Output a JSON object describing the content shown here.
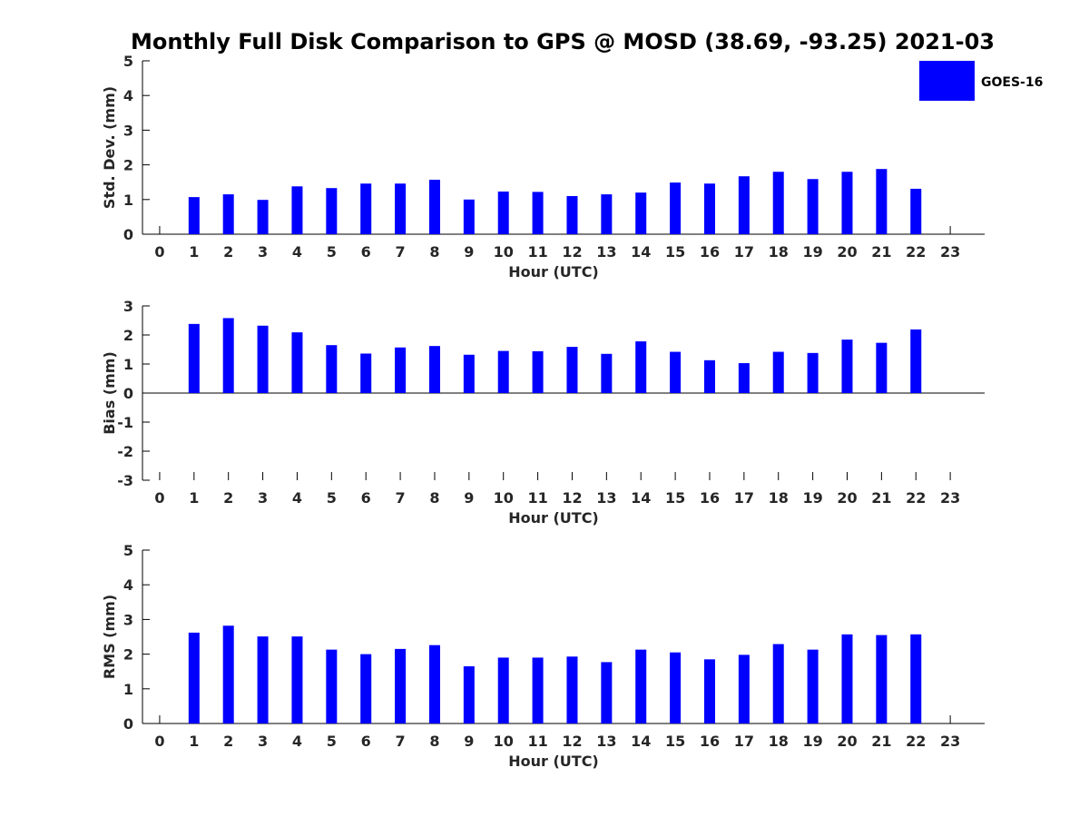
{
  "title": "Monthly Full Disk Comparison to GPS @ MOSD (38.69, -93.25) 2021-03",
  "legend": {
    "label": "GOES-16",
    "color": "#0000ff"
  },
  "chart_data": [
    {
      "type": "bar",
      "name": "std-dev",
      "title": "Monthly Full Disk Comparison to GPS @ MOSD (38.69, -93.25) 2021-03",
      "xlabel": "Hour (UTC)",
      "ylabel": "Std. Dev. (mm)",
      "ylim": [
        0,
        5
      ],
      "yticks": [
        "0",
        "1",
        "2",
        "3",
        "4",
        "5"
      ],
      "categories": [
        "0",
        "1",
        "2",
        "3",
        "4",
        "5",
        "6",
        "7",
        "8",
        "9",
        "10",
        "11",
        "12",
        "13",
        "14",
        "15",
        "16",
        "17",
        "18",
        "19",
        "20",
        "21",
        "22",
        "23"
      ],
      "series": [
        {
          "name": "GOES-16",
          "values": [
            null,
            1.07,
            1.15,
            0.99,
            1.38,
            1.33,
            1.46,
            1.46,
            1.57,
            1.0,
            1.23,
            1.22,
            1.1,
            1.15,
            1.2,
            1.49,
            1.46,
            1.67,
            1.8,
            1.59,
            1.8,
            1.88,
            1.31,
            null
          ]
        }
      ]
    },
    {
      "type": "bar",
      "name": "bias",
      "xlabel": "Hour (UTC)",
      "ylabel": "Bias (mm)",
      "ylim": [
        -3,
        3
      ],
      "yticks": [
        "-3",
        "-2",
        "-1",
        "0",
        "1",
        "2",
        "3"
      ],
      "categories": [
        "0",
        "1",
        "2",
        "3",
        "4",
        "5",
        "6",
        "7",
        "8",
        "9",
        "10",
        "11",
        "12",
        "13",
        "14",
        "15",
        "16",
        "17",
        "18",
        "19",
        "20",
        "21",
        "22",
        "23"
      ],
      "series": [
        {
          "name": "GOES-16",
          "values": [
            null,
            2.38,
            2.58,
            2.32,
            2.09,
            1.65,
            1.36,
            1.57,
            1.62,
            1.32,
            1.45,
            1.44,
            1.59,
            1.35,
            1.78,
            1.42,
            1.13,
            1.03,
            1.42,
            1.38,
            1.84,
            1.73,
            2.19,
            null
          ]
        }
      ]
    },
    {
      "type": "bar",
      "name": "rms",
      "xlabel": "Hour (UTC)",
      "ylabel": "RMS (mm)",
      "ylim": [
        0,
        5
      ],
      "yticks": [
        "0",
        "1",
        "2",
        "3",
        "4",
        "5"
      ],
      "categories": [
        "0",
        "1",
        "2",
        "3",
        "4",
        "5",
        "6",
        "7",
        "8",
        "9",
        "10",
        "11",
        "12",
        "13",
        "14",
        "15",
        "16",
        "17",
        "18",
        "19",
        "20",
        "21",
        "22",
        "23"
      ],
      "series": [
        {
          "name": "GOES-16",
          "values": [
            null,
            2.62,
            2.82,
            2.51,
            2.51,
            2.13,
            2.0,
            2.15,
            2.26,
            1.65,
            1.9,
            1.9,
            1.93,
            1.77,
            2.13,
            2.05,
            1.85,
            1.98,
            2.29,
            2.13,
            2.57,
            2.55,
            2.57,
            null
          ]
        }
      ]
    }
  ]
}
